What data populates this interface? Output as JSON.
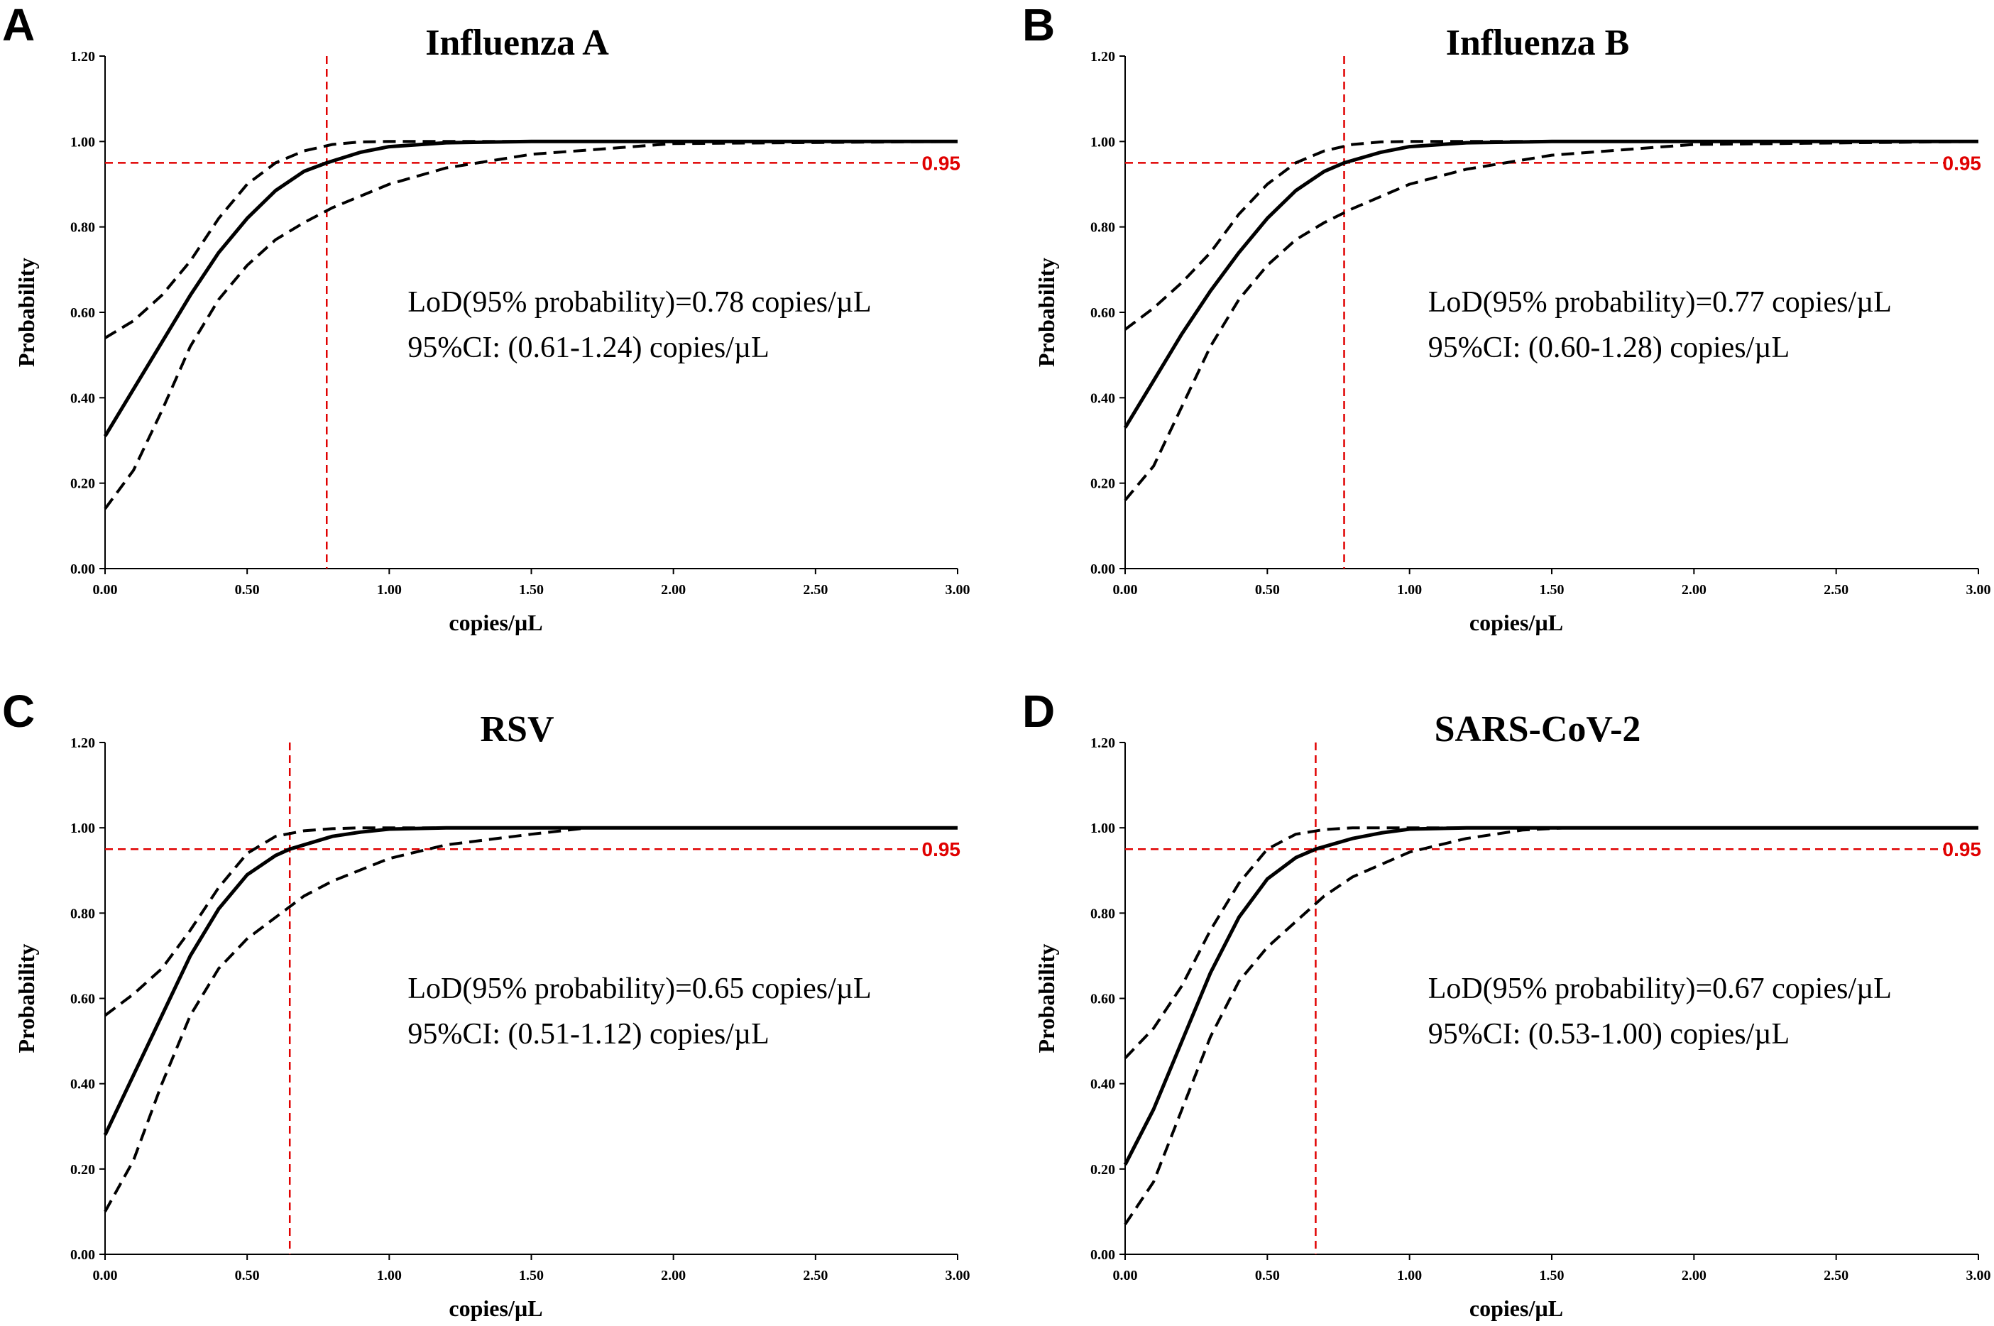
{
  "colors": {
    "reference": "#e00000",
    "curve": "#000000",
    "axis": "#000000"
  },
  "chart_data": [
    {
      "panel": "A",
      "type": "line",
      "title": "Influenza A",
      "xlabel": "copies/µL",
      "ylabel": "Probability",
      "xlim": [
        0,
        3
      ],
      "ylim": [
        0,
        1.2
      ],
      "xticks": [
        "0.00",
        "0.50",
        "1.00",
        "1.50",
        "2.00",
        "2.50",
        "3.00"
      ],
      "yticks": [
        "0.00",
        "0.20",
        "0.40",
        "0.60",
        "0.80",
        "1.00",
        "1.20"
      ],
      "lod": 0.78,
      "threshold": 0.95,
      "threshold_label": "0.95",
      "annotation": [
        "LoD(95% probability)=0.78  copies/µL",
        "95%CI: (0.61-1.24) copies/µL"
      ],
      "series": [
        {
          "name": "fit",
          "style": "solid",
          "x": [
            0,
            0.1,
            0.2,
            0.3,
            0.4,
            0.5,
            0.6,
            0.7,
            0.78,
            0.9,
            1.0,
            1.2,
            1.5,
            2.0,
            3.0
          ],
          "y": [
            0.31,
            0.42,
            0.53,
            0.64,
            0.74,
            0.82,
            0.885,
            0.93,
            0.95,
            0.975,
            0.988,
            0.997,
            1.0,
            1.0,
            1.0
          ]
        },
        {
          "name": "upper",
          "style": "dashed",
          "x": [
            0,
            0.1,
            0.2,
            0.3,
            0.4,
            0.5,
            0.6,
            0.7,
            0.8,
            0.9,
            1.0,
            1.5,
            3.0
          ],
          "y": [
            0.54,
            0.58,
            0.64,
            0.72,
            0.82,
            0.9,
            0.95,
            0.978,
            0.993,
            0.999,
            1.0,
            1.0,
            1.0
          ]
        },
        {
          "name": "lower",
          "style": "dashed",
          "x": [
            0,
            0.1,
            0.2,
            0.3,
            0.4,
            0.5,
            0.6,
            0.7,
            0.8,
            1.0,
            1.2,
            1.5,
            2.0,
            3.0
          ],
          "y": [
            0.14,
            0.23,
            0.37,
            0.52,
            0.63,
            0.71,
            0.77,
            0.81,
            0.845,
            0.9,
            0.938,
            0.97,
            0.995,
            1.0
          ]
        }
      ]
    },
    {
      "panel": "B",
      "type": "line",
      "title": "Influenza B",
      "xlabel": "copies/µL",
      "ylabel": "Probability",
      "xlim": [
        0,
        3
      ],
      "ylim": [
        0,
        1.2
      ],
      "xticks": [
        "0.00",
        "0.50",
        "1.00",
        "1.50",
        "2.00",
        "2.50",
        "3.00"
      ],
      "yticks": [
        "0.00",
        "0.20",
        "0.40",
        "0.60",
        "0.80",
        "1.00",
        "1.20"
      ],
      "lod": 0.77,
      "threshold": 0.95,
      "threshold_label": "0.95",
      "annotation": [
        "LoD(95% probability)=0.77  copies/µL",
        "95%CI: (0.60-1.28) copies/µL"
      ],
      "series": [
        {
          "name": "fit",
          "style": "solid",
          "x": [
            0,
            0.1,
            0.2,
            0.3,
            0.4,
            0.5,
            0.6,
            0.7,
            0.77,
            0.9,
            1.0,
            1.2,
            1.5,
            2.0,
            3.0
          ],
          "y": [
            0.33,
            0.44,
            0.55,
            0.65,
            0.74,
            0.82,
            0.885,
            0.93,
            0.95,
            0.975,
            0.988,
            0.997,
            1.0,
            1.0,
            1.0
          ]
        },
        {
          "name": "upper",
          "style": "dashed",
          "x": [
            0,
            0.1,
            0.2,
            0.3,
            0.4,
            0.5,
            0.6,
            0.7,
            0.8,
            0.9,
            1.0,
            1.5,
            3.0
          ],
          "y": [
            0.56,
            0.61,
            0.67,
            0.74,
            0.83,
            0.9,
            0.95,
            0.978,
            0.993,
            0.999,
            1.0,
            1.0,
            1.0
          ]
        },
        {
          "name": "lower",
          "style": "dashed",
          "x": [
            0,
            0.1,
            0.2,
            0.3,
            0.4,
            0.5,
            0.6,
            0.7,
            0.8,
            1.0,
            1.2,
            1.5,
            2.0,
            3.0
          ],
          "y": [
            0.16,
            0.24,
            0.38,
            0.52,
            0.63,
            0.71,
            0.77,
            0.81,
            0.843,
            0.9,
            0.935,
            0.968,
            0.993,
            1.0
          ]
        }
      ]
    },
    {
      "panel": "C",
      "type": "line",
      "title": "RSV",
      "xlabel": "copies/µL",
      "ylabel": "Probability",
      "xlim": [
        0,
        3
      ],
      "ylim": [
        0,
        1.2
      ],
      "xticks": [
        "0.00",
        "0.50",
        "1.00",
        "1.50",
        "2.00",
        "2.50",
        "3.00"
      ],
      "yticks": [
        "0.00",
        "0.20",
        "0.40",
        "0.60",
        "0.80",
        "1.00",
        "1.20"
      ],
      "lod": 0.65,
      "threshold": 0.95,
      "threshold_label": "0.95",
      "annotation": [
        "LoD(95% probability)=0.65  copies/µL",
        "95%CI: (0.51-1.12) copies/µL"
      ],
      "series": [
        {
          "name": "fit",
          "style": "solid",
          "x": [
            0,
            0.1,
            0.2,
            0.3,
            0.4,
            0.5,
            0.6,
            0.65,
            0.8,
            0.9,
            1.0,
            1.2,
            1.5,
            3.0
          ],
          "y": [
            0.28,
            0.42,
            0.56,
            0.7,
            0.81,
            0.89,
            0.935,
            0.95,
            0.98,
            0.99,
            0.997,
            1.0,
            1.0,
            1.0
          ]
        },
        {
          "name": "upper",
          "style": "dashed",
          "x": [
            0,
            0.1,
            0.2,
            0.3,
            0.4,
            0.5,
            0.6,
            0.7,
            0.8,
            0.9,
            1.0,
            3.0
          ],
          "y": [
            0.56,
            0.61,
            0.67,
            0.76,
            0.86,
            0.94,
            0.98,
            0.993,
            0.998,
            1.0,
            1.0,
            1.0
          ]
        },
        {
          "name": "lower",
          "style": "dashed",
          "x": [
            0,
            0.1,
            0.2,
            0.3,
            0.4,
            0.5,
            0.6,
            0.7,
            0.8,
            1.0,
            1.2,
            1.5,
            1.7,
            3.0
          ],
          "y": [
            0.1,
            0.22,
            0.4,
            0.56,
            0.67,
            0.74,
            0.79,
            0.84,
            0.875,
            0.928,
            0.96,
            0.985,
            1.0,
            1.0
          ]
        }
      ]
    },
    {
      "panel": "D",
      "type": "line",
      "title": "SARS-CoV-2",
      "xlabel": "copies/µL",
      "ylabel": "Probability",
      "xlim": [
        0,
        3
      ],
      "ylim": [
        0,
        1.2
      ],
      "xticks": [
        "0.00",
        "0.50",
        "1.00",
        "1.50",
        "2.00",
        "2.50",
        "3.00"
      ],
      "yticks": [
        "0.00",
        "0.20",
        "0.40",
        "0.60",
        "0.80",
        "1.00",
        "1.20"
      ],
      "lod": 0.67,
      "threshold": 0.95,
      "threshold_label": "0.95",
      "annotation": [
        "LoD(95% probability)=0.67  copies/µL",
        "95%CI: (0.53-1.00) copies/µL"
      ],
      "series": [
        {
          "name": "fit",
          "style": "solid",
          "x": [
            0,
            0.1,
            0.2,
            0.3,
            0.4,
            0.5,
            0.6,
            0.67,
            0.8,
            0.9,
            1.0,
            1.2,
            1.5,
            3.0
          ],
          "y": [
            0.21,
            0.34,
            0.5,
            0.66,
            0.79,
            0.88,
            0.93,
            0.95,
            0.975,
            0.988,
            0.997,
            1.0,
            1.0,
            1.0
          ]
        },
        {
          "name": "upper",
          "style": "dashed",
          "x": [
            0,
            0.1,
            0.2,
            0.3,
            0.4,
            0.5,
            0.6,
            0.7,
            0.8,
            0.9,
            1.0,
            3.0
          ],
          "y": [
            0.46,
            0.53,
            0.63,
            0.76,
            0.87,
            0.95,
            0.985,
            0.996,
            1.0,
            1.0,
            1.0,
            1.0
          ]
        },
        {
          "name": "lower",
          "style": "dashed",
          "x": [
            0,
            0.1,
            0.2,
            0.3,
            0.4,
            0.5,
            0.6,
            0.7,
            0.8,
            1.0,
            1.2,
            1.4,
            1.55,
            3.0
          ],
          "y": [
            0.07,
            0.17,
            0.34,
            0.51,
            0.64,
            0.72,
            0.78,
            0.84,
            0.885,
            0.943,
            0.975,
            0.995,
            1.0,
            1.0
          ]
        }
      ]
    }
  ]
}
